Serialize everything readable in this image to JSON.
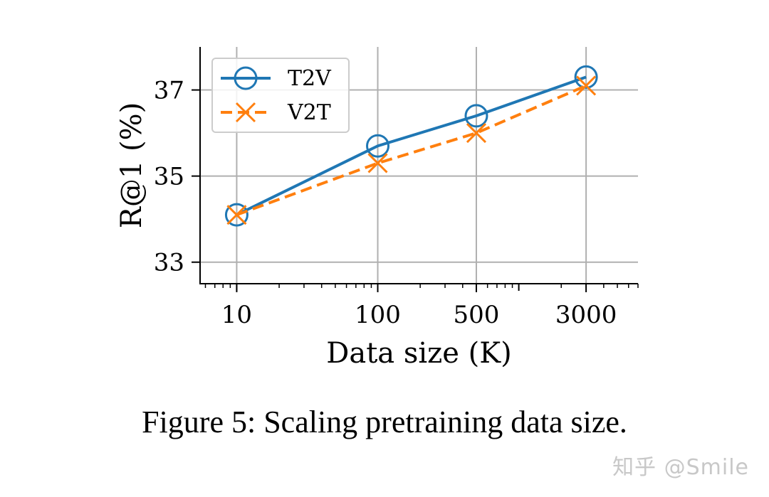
{
  "chart_data": {
    "type": "line",
    "x_scale": "log",
    "xlabel": "Data size (K)",
    "ylabel": "R@1 (%)",
    "x": [
      10,
      100,
      500,
      3000
    ],
    "xticks": [
      "10",
      "100",
      "500",
      "3000"
    ],
    "yticks": [
      33,
      35,
      37
    ],
    "xlim": [
      5.5,
      7000
    ],
    "ylim": [
      32.5,
      38.0
    ],
    "grid": true,
    "legend_position": "top-left",
    "series": [
      {
        "name": "T2V",
        "values": [
          34.1,
          35.7,
          36.4,
          37.3
        ],
        "color": "#1f77b4",
        "marker": "circle",
        "line": "solid"
      },
      {
        "name": "V2T",
        "values": [
          34.1,
          35.3,
          36.0,
          37.1
        ],
        "color": "#ff7f0e",
        "marker": "x",
        "line": "dashed"
      }
    ]
  },
  "caption": "Figure 5: Scaling pretraining data size.",
  "watermark": "知乎 @Smile"
}
